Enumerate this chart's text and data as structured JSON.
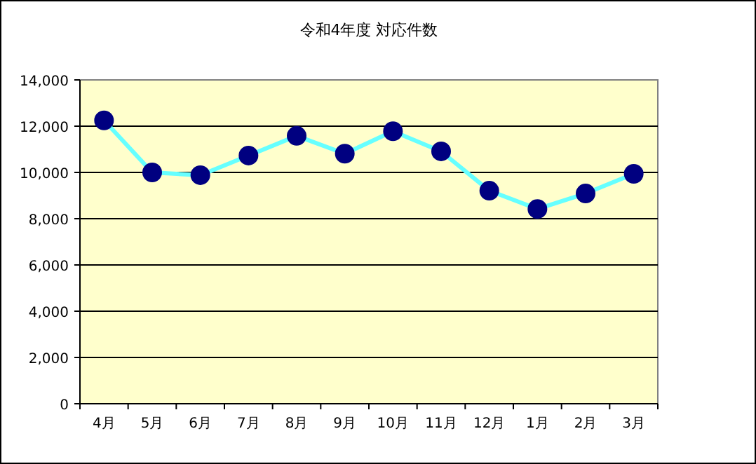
{
  "chart_data": {
    "type": "line",
    "title": "令和4年度 対応件数",
    "categories": [
      "4月",
      "5月",
      "6月",
      "7月",
      "8月",
      "9月",
      "10月",
      "11月",
      "12月",
      "1月",
      "2月",
      "3月"
    ],
    "values": [
      12250,
      10000,
      9880,
      10730,
      11580,
      10810,
      11780,
      10910,
      9210,
      8420,
      9090,
      9940
    ],
    "color": "#000080",
    "marker": "circle",
    "grid": "y",
    "ylim": [
      0,
      14000
    ],
    "yticks": [
      {
        "value": 0,
        "label": "0"
      },
      {
        "value": 2000,
        "label": "2,000"
      },
      {
        "value": 4000,
        "label": "4,000"
      },
      {
        "value": 6000,
        "label": "6,000"
      },
      {
        "value": 8000,
        "label": "8,000"
      },
      {
        "value": 10000,
        "label": "10,000"
      },
      {
        "value": 12000,
        "label": "12,000"
      },
      {
        "value": 14000,
        "label": "14,000"
      }
    ]
  }
}
